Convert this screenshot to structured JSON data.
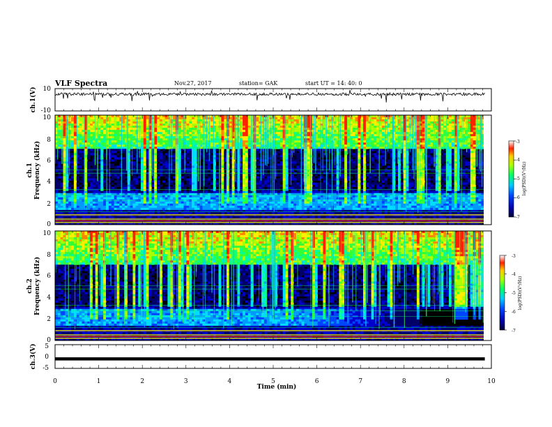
{
  "header": {
    "title": "VLF Spectra",
    "date": "Nov.27, 2017",
    "station": "station= GAK",
    "start": "start  UT =  14: 40: 0"
  },
  "chart_data": [
    {
      "type": "line",
      "panel": "ch1-waveform",
      "ylabel": "ch.1(V)",
      "ylim": [
        -10,
        10
      ],
      "ytick_labels": [
        "10",
        "-10"
      ],
      "baseline_v": 5,
      "color": "#000000"
    },
    {
      "type": "heatmap",
      "panel": "ch1-spectrogram",
      "ylabel": [
        "ch.1",
        "Frequency (kHz)"
      ],
      "ylim": [
        0,
        10
      ],
      "xlim": [
        0,
        10
      ],
      "ytick_labels": [
        "0",
        "2",
        "4",
        "6",
        "8",
        "10"
      ],
      "colorbar": {
        "label": "log(PSD)(V²/Hz)",
        "range": [
          -7,
          -3
        ],
        "tick_labels": [
          "-3",
          "-4",
          "-5",
          "-6",
          "-7"
        ]
      }
    },
    {
      "type": "heatmap",
      "panel": "ch2-spectrogram",
      "ylabel": [
        "ch.2",
        "Frequency (kHz)"
      ],
      "ylim": [
        0,
        10
      ],
      "xlim": [
        0,
        10
      ],
      "ytick_labels": [
        "0",
        "2",
        "4",
        "6",
        "8",
        "10"
      ],
      "colorbar": {
        "label": "log(PSD)(V²/Hz)",
        "range": [
          -7,
          -3
        ],
        "tick_labels": [
          "-3",
          "-4",
          "-5",
          "-6",
          "-7"
        ]
      }
    },
    {
      "type": "line",
      "panel": "ch3-waveform",
      "ylabel": "ch.3(V)",
      "ylim": [
        -5,
        5
      ],
      "ytick_labels": [
        "5",
        "0",
        "-5"
      ],
      "constant_value_v": -1,
      "color": "#000000"
    }
  ],
  "xaxis": {
    "label": "Time (min)",
    "xlim": [
      0,
      10
    ],
    "tick_labels": [
      "0",
      "1",
      "2",
      "3",
      "4",
      "5",
      "6",
      "7",
      "8",
      "9",
      "10"
    ]
  }
}
